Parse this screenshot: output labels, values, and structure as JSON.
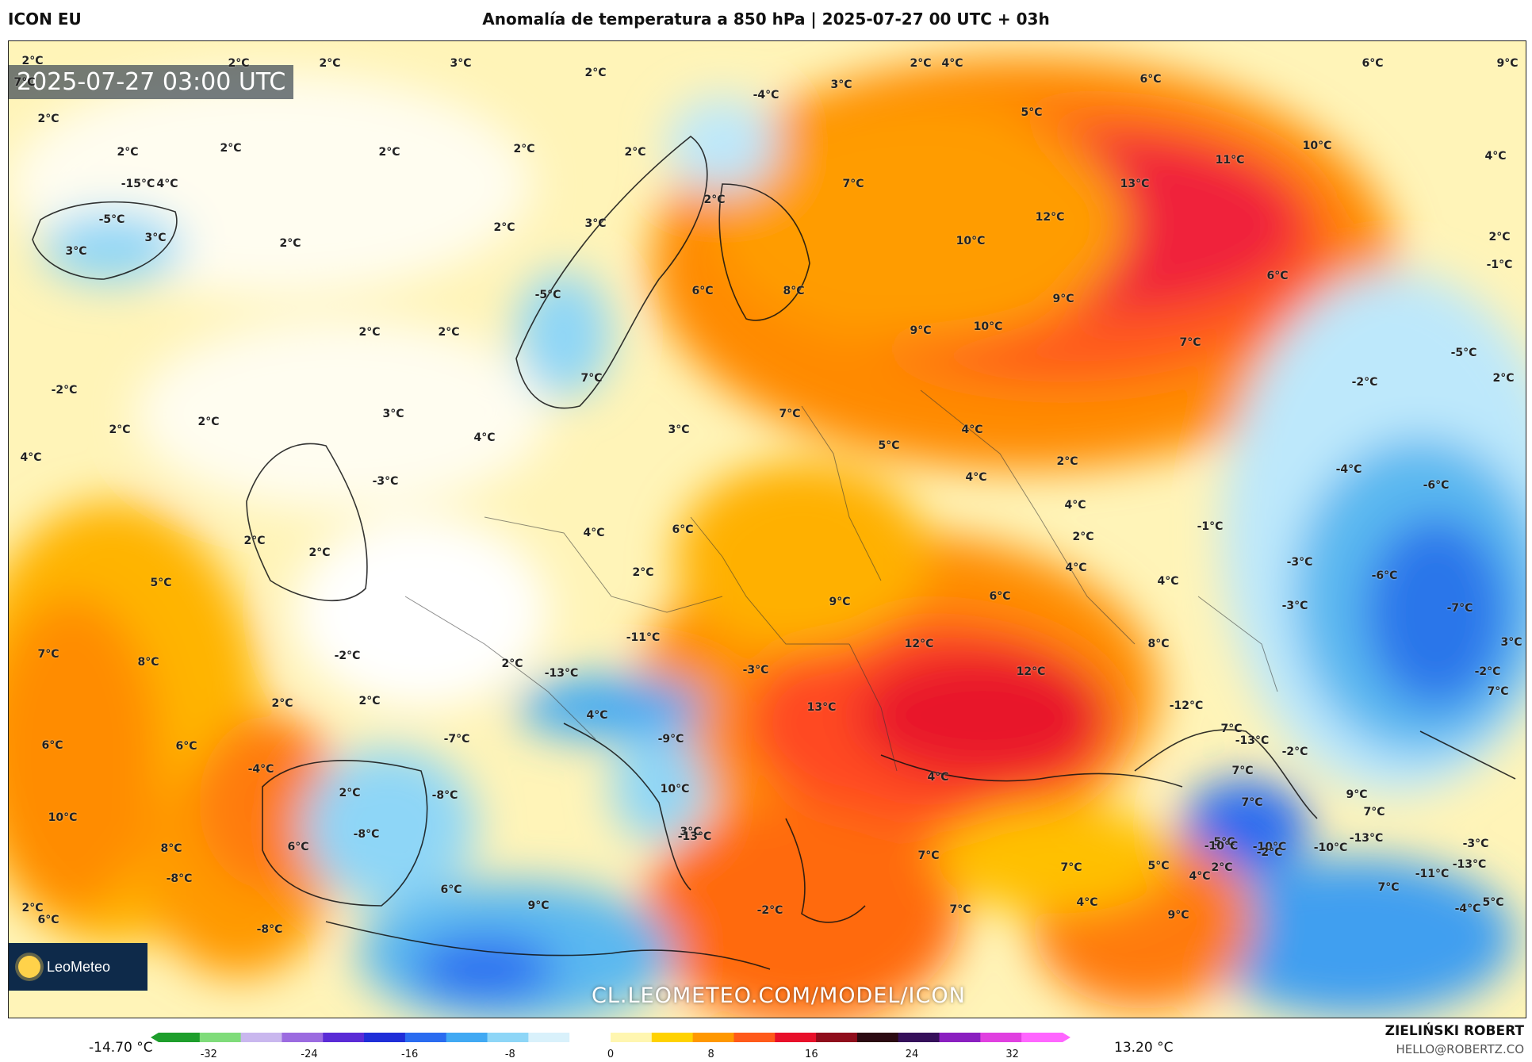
{
  "header": {
    "model": "ICON EU",
    "title": "Anomalía de temperatura a 850 hPa | 2025-07-27 00 UTC + 03h"
  },
  "map": {
    "timestamp": "2025-07-27 03:00 UTC",
    "url": "CL.LEOMETEO.COM/MODEL/ICON",
    "logo_text": "LeoMeteo",
    "labels": [
      "2°C",
      "2°C",
      "2°C",
      "3°C",
      "2°C",
      "2°C",
      "4°C",
      "6°C",
      "9°C",
      "7°C",
      "2°C",
      "2°C",
      "2°C",
      "2°C",
      "2°C",
      "2°C",
      "-4°C",
      "3°C",
      "5°C",
      "6°C",
      "11°C",
      "10°C",
      "4°C",
      "-5°C",
      "3°C",
      "3°C",
      "2°C",
      "2°C",
      "3°C",
      "2°C",
      "7°C",
      "13°C",
      "12°C",
      "10°C",
      "-5°C",
      "6°C",
      "8°C",
      "9°C",
      "10°C",
      "9°C",
      "6°C",
      "7°C",
      "2°C",
      "-1°C",
      "2°C",
      "2°C",
      "-2°C",
      "3°C",
      "7°C",
      "3°C",
      "7°C",
      "5°C",
      "4°C",
      "-5°C",
      "-2°C",
      "2°C",
      "2°C",
      "2°C",
      "4°C",
      "-3°C",
      "4°C",
      "4°C",
      "2°C",
      "4°C",
      "-4°C",
      "-6°C",
      "2°C",
      "2°C",
      "4°C",
      "6°C",
      "-1°C",
      "2°C",
      "-3°C",
      "-3°C",
      "-6°C",
      "5°C",
      "2°C",
      "9°C",
      "6°C",
      "4°C",
      "4°C",
      "-7°C",
      "3°C",
      "7°C",
      "8°C",
      "-2°C",
      "2°C",
      "-11°C",
      "-13°C",
      "12°C",
      "12°C",
      "8°C",
      "-2°C",
      "2°C",
      "2°C",
      "4°C",
      "-3°C",
      "-12°C",
      "7°C",
      "7°C",
      "6°C",
      "6°C",
      "-7°C",
      "-9°C",
      "13°C",
      "-13°C",
      "7°C",
      "-2°C",
      "9°C",
      "-4°C",
      "2°C",
      "-8°C",
      "10°C",
      "4°C",
      "7°C",
      "7°C",
      "-10°C",
      "-5°C",
      "10°C",
      "8°C",
      "6°C",
      "-8°C",
      "3°C",
      "7°C",
      "5°C",
      "-10°C",
      "-13°C",
      "-13°C",
      "2°C",
      "-8°C",
      "6°C",
      "-13°C",
      "7°C",
      "-2°C",
      "-10°C",
      "-3°C",
      "4°C",
      "5°C",
      "6°C",
      "-8°C",
      "9°C",
      "-2°C",
      "9°C",
      "-4°C",
      "4°C",
      "7°C",
      "2°C",
      "7°C",
      "-11°C",
      "-15°C",
      "4°C"
    ]
  },
  "colorbar": {
    "min_label": "-14.70 °C",
    "max_label": "13.20 °C",
    "ticks": [
      "-32",
      "-24",
      "-16",
      "-8",
      "0",
      "8",
      "16",
      "24",
      "32"
    ],
    "tick_values": [
      -32,
      -24,
      -16,
      -8,
      0,
      8,
      16,
      24,
      32
    ],
    "range": [
      -36,
      36
    ],
    "colors": [
      "#1e9e2c",
      "#7fdc7a",
      "#c9b7ee",
      "#9b6be0",
      "#5a2bd6",
      "#1f2ed8",
      "#2a6cf0",
      "#41a9f3",
      "#8ed6f7",
      "#d9f1fb",
      "#ffffff",
      "#fff6b0",
      "#ffd200",
      "#ff9800",
      "#ff5a1a",
      "#e8102a",
      "#8f0d1c",
      "#2b0a12",
      "#35105a",
      "#8a1fc0",
      "#e040e0",
      "#ff66ff"
    ]
  },
  "credits": {
    "author": "ZIELIŃSKI ROBERT",
    "email": "HELLO@ROBERTZ.CO"
  }
}
